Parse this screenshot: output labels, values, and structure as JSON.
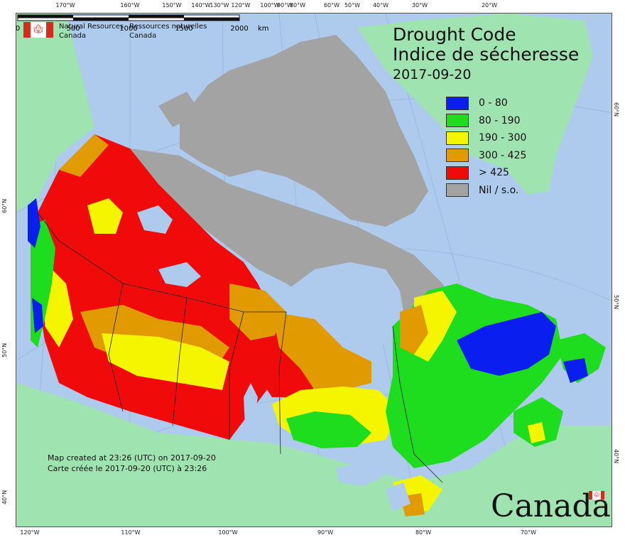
{
  "agency": {
    "name_en_line1": "Natural Resources",
    "name_en_line2": "Canada",
    "name_fr_line1": "Ressources naturelles",
    "name_fr_line2": "Canada"
  },
  "title": {
    "en": "Drought Code",
    "fr": "Indice de sécheresse",
    "date": "2017-09-20"
  },
  "legend": [
    {
      "label": "0 - 80",
      "color": "#0a1ef0"
    },
    {
      "label": "80 - 190",
      "color": "#1edc1e"
    },
    {
      "label": "190 - 300",
      "color": "#f5f500"
    },
    {
      "label": "300 - 425",
      "color": "#e19b00"
    },
    {
      "label": "> 425",
      "color": "#f00a0a"
    },
    {
      "label": "Nil / s.o.",
      "color": "#a3a3a3"
    }
  ],
  "colors": {
    "ocean": "#aecbee",
    "land_outside": "#9ee3b0",
    "no_data": "#a3a3a3"
  },
  "credits": {
    "en": "Map created at 23:26 (UTC) on 2017-09-20",
    "fr": "Carte créée le 2017-09-20 (UTC) à 23:26"
  },
  "scale": {
    "ticks": [
      "0",
      "500",
      "1000",
      "1500",
      "2000"
    ],
    "unit": "km"
  },
  "graticule": {
    "top": [
      "170°W",
      "160°W",
      "150°W",
      "140°W",
      "130°W",
      "120°W",
      "100°W",
      "90°W",
      "80°W",
      "60°W",
      "50°W",
      "40°W",
      "30°W",
      "20°W"
    ],
    "bottom": [
      "120°W",
      "110°W",
      "100°W",
      "90°W",
      "80°W",
      "70°W"
    ],
    "left": [
      "60°N",
      "50°N",
      "40°N"
    ],
    "right": [
      "60°N",
      "50°N",
      "40°N"
    ]
  },
  "wordmark": "Canada"
}
